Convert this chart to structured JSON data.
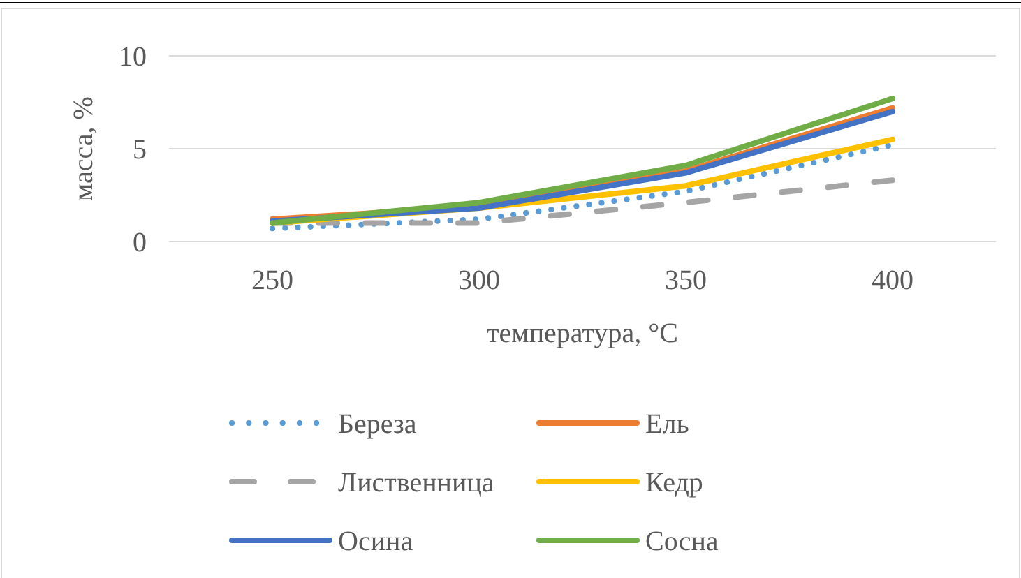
{
  "chart_data": {
    "type": "line",
    "xlabel": "температура, °C",
    "ylabel": "масса, %",
    "categories": [
      "250",
      "300",
      "350",
      "400"
    ],
    "ylim": [
      0,
      10
    ],
    "yticks": [
      0,
      5,
      10
    ],
    "grid": "y",
    "legend": "bottom",
    "marker": "none",
    "series": [
      {
        "name": "Береза",
        "color": "#5b9bd5",
        "line_style": "dotted",
        "values": [
          0.7,
          1.2,
          2.7,
          5.2
        ]
      },
      {
        "name": "Ель",
        "color": "#ed7d31",
        "line_style": "solid",
        "values": [
          1.2,
          1.9,
          3.8,
          7.2
        ]
      },
      {
        "name": "Лиственница",
        "color": "#a5a5a5",
        "line_style": "dashed",
        "values": [
          1.0,
          1.0,
          2.1,
          3.3
        ]
      },
      {
        "name": "Кедр",
        "color": "#ffc000",
        "line_style": "solid",
        "values": [
          1.0,
          1.8,
          3.0,
          5.5
        ]
      },
      {
        "name": "Осина",
        "color": "#4472c4",
        "line_style": "solid",
        "values": [
          1.1,
          1.8,
          3.7,
          7.0
        ]
      },
      {
        "name": "Сосна",
        "color": "#70ad47",
        "line_style": "solid",
        "values": [
          1.0,
          2.1,
          4.1,
          7.7
        ]
      }
    ]
  }
}
